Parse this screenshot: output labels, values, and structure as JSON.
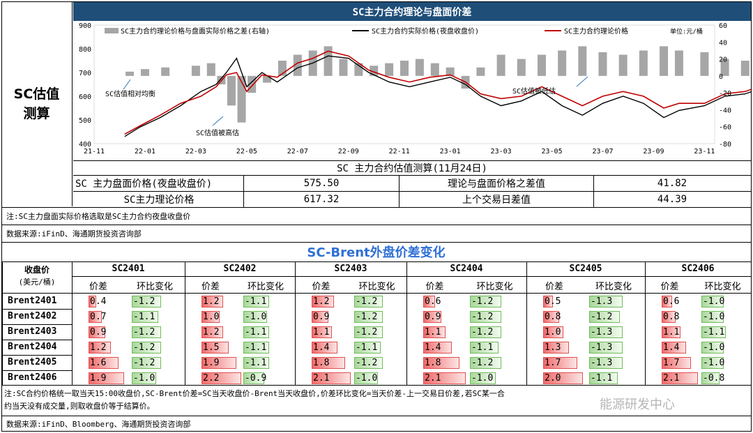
{
  "sidebar": {
    "line1": "SC估值",
    "line2": "测算"
  },
  "top": {
    "title": "SC主力合约理论与盘面价差",
    "legend": {
      "spread": "SC主力合约理论价格与盘面实际价格之差(右轴)",
      "actual": "SC主力合约实际价格(夜盘收盘价)",
      "theory": "SC主力合约理论价格",
      "unit": "单位:元/桶"
    },
    "annotations": {
      "fair": "SC估值相对均衡",
      "over": "SC估值被高估",
      "under": "SC估值被低估"
    },
    "left_ticks": [
      "900",
      "800",
      "700",
      "600",
      "500",
      "400"
    ],
    "right_ticks": [
      "60",
      "40",
      "20",
      "0",
      "-20",
      "-40",
      "-60",
      "-80"
    ],
    "x_ticks": [
      "21-11",
      "22-01",
      "22-03",
      "22-05",
      "22-07",
      "22-09",
      "22-11",
      "23-01",
      "23-03",
      "23-05",
      "23-07",
      "23-09",
      "23-11"
    ]
  },
  "chart_data": {
    "type": "line",
    "title": "SC主力合约理论与盘面价差",
    "x": [
      "21-11",
      "22-01",
      "22-03",
      "22-05",
      "22-07",
      "22-09",
      "22-11",
      "23-01",
      "23-03",
      "23-05",
      "23-07",
      "23-09",
      "23-11"
    ],
    "ylim_left": [
      400,
      900
    ],
    "ylim_right": [
      -80,
      60
    ],
    "series": [
      {
        "name": "SC主力合约实际价格(夜盘收盘价)",
        "axis": "left",
        "color": "#000000",
        "points": [
          [
            0.6,
            430
          ],
          [
            0.9,
            470
          ],
          [
            1.3,
            510
          ],
          [
            1.7,
            560
          ],
          [
            2.1,
            620
          ],
          [
            2.4,
            650
          ],
          [
            2.6,
            700
          ],
          [
            2.8,
            760
          ],
          [
            3.0,
            640
          ],
          [
            3.3,
            700
          ],
          [
            3.6,
            660
          ],
          [
            4.0,
            720
          ],
          [
            4.3,
            740
          ],
          [
            4.6,
            770
          ],
          [
            5.0,
            760
          ],
          [
            5.4,
            700
          ],
          [
            5.8,
            660
          ],
          [
            6.2,
            640
          ],
          [
            6.6,
            660
          ],
          [
            7.0,
            680
          ],
          [
            7.3,
            650
          ],
          [
            7.6,
            600
          ],
          [
            8.0,
            560
          ],
          [
            8.4,
            580
          ],
          [
            8.8,
            620
          ],
          [
            9.2,
            560
          ],
          [
            9.6,
            520
          ],
          [
            10.0,
            570
          ],
          [
            10.4,
            600
          ],
          [
            10.8,
            570
          ],
          [
            11.2,
            510
          ],
          [
            11.5,
            540
          ],
          [
            12.0,
            560
          ],
          [
            12.4,
            600
          ],
          [
            12.8,
            610
          ],
          [
            13.2,
            640
          ],
          [
            13.6,
            660
          ],
          [
            14.0,
            680
          ],
          [
            14.4,
            700
          ],
          [
            14.7,
            720
          ],
          [
            15.0,
            690
          ],
          [
            15.3,
            670
          ],
          [
            15.6,
            650
          ],
          [
            15.9,
            600
          ],
          [
            16.1,
            580
          ]
        ]
      },
      {
        "name": "SC主力合约理论价格",
        "axis": "left",
        "color": "#c00000",
        "points": [
          [
            0.6,
            440
          ],
          [
            0.9,
            475
          ],
          [
            1.3,
            520
          ],
          [
            1.7,
            570
          ],
          [
            2.1,
            600
          ],
          [
            2.4,
            640
          ],
          [
            2.6,
            690
          ],
          [
            2.8,
            700
          ],
          [
            3.0,
            620
          ],
          [
            3.3,
            690
          ],
          [
            3.6,
            680
          ],
          [
            4.0,
            740
          ],
          [
            4.3,
            760
          ],
          [
            4.6,
            790
          ],
          [
            5.0,
            770
          ],
          [
            5.4,
            710
          ],
          [
            5.8,
            680
          ],
          [
            6.2,
            660
          ],
          [
            6.6,
            680
          ],
          [
            7.0,
            690
          ],
          [
            7.3,
            660
          ],
          [
            7.6,
            610
          ],
          [
            8.0,
            590
          ],
          [
            8.4,
            600
          ],
          [
            8.8,
            640
          ],
          [
            9.2,
            600
          ],
          [
            9.6,
            560
          ],
          [
            10.0,
            600
          ],
          [
            10.4,
            620
          ],
          [
            10.8,
            600
          ],
          [
            11.2,
            550
          ],
          [
            11.5,
            570
          ],
          [
            12.0,
            570
          ],
          [
            12.4,
            610
          ],
          [
            12.8,
            620
          ],
          [
            13.2,
            650
          ],
          [
            13.6,
            670
          ],
          [
            14.0,
            690
          ],
          [
            14.4,
            700
          ],
          [
            14.7,
            710
          ],
          [
            15.0,
            700
          ],
          [
            15.3,
            690
          ],
          [
            15.6,
            680
          ],
          [
            15.9,
            640
          ],
          [
            16.1,
            620
          ]
        ]
      },
      {
        "name": "SC主力合约理论价格与盘面实际价格之差(右轴)",
        "axis": "right",
        "color": "#a6a6a6",
        "type": "bar",
        "points": [
          [
            0.7,
            5
          ],
          [
            1.0,
            8
          ],
          [
            1.4,
            10
          ],
          [
            2.0,
            12
          ],
          [
            2.3,
            15
          ],
          [
            2.5,
            -10
          ],
          [
            2.7,
            -35
          ],
          [
            2.9,
            -55
          ],
          [
            3.1,
            -20
          ],
          [
            3.4,
            -8
          ],
          [
            3.7,
            18
          ],
          [
            4.0,
            25
          ],
          [
            4.3,
            30
          ],
          [
            4.6,
            35
          ],
          [
            4.9,
            20
          ],
          [
            5.2,
            15
          ],
          [
            5.5,
            12
          ],
          [
            5.8,
            15
          ],
          [
            6.1,
            18
          ],
          [
            6.4,
            20
          ],
          [
            6.7,
            15
          ],
          [
            7.0,
            10
          ],
          [
            7.3,
            -15
          ],
          [
            7.6,
            10
          ],
          [
            8.0,
            25
          ],
          [
            8.4,
            20
          ],
          [
            8.8,
            25
          ],
          [
            9.2,
            30
          ],
          [
            9.6,
            35
          ],
          [
            10.0,
            28
          ],
          [
            10.4,
            25
          ],
          [
            10.8,
            30
          ],
          [
            11.2,
            35
          ],
          [
            11.5,
            30
          ],
          [
            12.0,
            28
          ],
          [
            12.4,
            20
          ],
          [
            12.8,
            18
          ],
          [
            13.2,
            12
          ],
          [
            13.6,
            10
          ],
          [
            14.0,
            15
          ],
          [
            14.4,
            20
          ],
          [
            14.7,
            -20
          ],
          [
            15.0,
            10
          ],
          [
            15.3,
            20
          ],
          [
            15.6,
            30
          ],
          [
            15.9,
            40
          ],
          [
            16.1,
            42
          ]
        ]
      }
    ]
  },
  "valuation": {
    "header": "SC 主力合约估值测算(11月24日)",
    "r1_label": "SC 主力盘面价格(夜盘收盘价)",
    "r1_value": "575.50",
    "r1_label2": "理论与盘面价格之差值",
    "r1_value2": "41.82",
    "r2_label": "SC主力理论价格",
    "r2_value": "617.32",
    "r2_label2": "上个交易日差值",
    "r2_value2": "44.39"
  },
  "note1": "注:SC主力盘面实际价格选取是SC主力合约夜盘收盘价",
  "source1": "数据来源:iFinD、海通期货投资咨询部",
  "section2_title": "SC-Brent外盘价差变化",
  "table": {
    "corner": "收盘价",
    "corner_unit": "(美元/桶)",
    "sub_a": "价差",
    "sub_b": "环比变化",
    "contracts": [
      "SC2401",
      "SC2402",
      "SC2403",
      "SC2404",
      "SC2405",
      "SC2406"
    ],
    "rows": [
      {
        "name": "Brent2401",
        "vals": [
          [
            "0.4",
            "-1.2"
          ],
          [
            "1.2",
            "-1.1"
          ],
          [
            "1.2",
            "-1.2"
          ],
          [
            "0.6",
            "-1.2"
          ],
          [
            "0.5",
            "-1.3"
          ],
          [
            "0.6",
            "-1.0"
          ]
        ]
      },
      {
        "name": "Brent2402",
        "vals": [
          [
            "0.7",
            "-1.1"
          ],
          [
            "1.0",
            "-1.0"
          ],
          [
            "0.9",
            "-1.2"
          ],
          [
            "0.9",
            "-1.2"
          ],
          [
            "0.8",
            "-1.2"
          ],
          [
            "0.8",
            "-1.0"
          ]
        ]
      },
      {
        "name": "Brent2403",
        "vals": [
          [
            "0.9",
            "-1.2"
          ],
          [
            "1.2",
            "-1.1"
          ],
          [
            "1.1",
            "-1.2"
          ],
          [
            "1.1",
            "-1.2"
          ],
          [
            "1.0",
            "-1.3"
          ],
          [
            "1.1",
            "-1.1"
          ]
        ]
      },
      {
        "name": "Brent2404",
        "vals": [
          [
            "1.2",
            "-1.2"
          ],
          [
            "1.5",
            "-1.1"
          ],
          [
            "1.4",
            "-1.1"
          ],
          [
            "1.4",
            "-1.1"
          ],
          [
            "1.3",
            "-1.3"
          ],
          [
            "1.4",
            "-1.0"
          ]
        ]
      },
      {
        "name": "Brent2405",
        "vals": [
          [
            "1.6",
            "-1.2"
          ],
          [
            "1.9",
            "-1.1"
          ],
          [
            "1.8",
            "-1.2"
          ],
          [
            "1.8",
            "-1.2"
          ],
          [
            "1.7",
            "-1.3"
          ],
          [
            "1.7",
            "-1.0"
          ]
        ]
      },
      {
        "name": "Brent2406",
        "vals": [
          [
            "1.9",
            "-1.0"
          ],
          [
            "2.2",
            "-0.9"
          ],
          [
            "2.1",
            "-1.0"
          ],
          [
            "2.1",
            "-1.0"
          ],
          [
            "2.0",
            "-1.1"
          ],
          [
            "2.1",
            "-0.8"
          ]
        ]
      }
    ]
  },
  "note2_line1": "注:SC合约价格统一取当天15:00收盘价,SC-Brent价差=SC当天收盘价-Brent当天收盘价,价差环比变化=当天价差-上一交易日价差,若SC某一合",
  "note2_line2": "约当天没有成交量,则取收盘价等于结算价。",
  "watermark": "能源研发中心",
  "source2": "数据来源:iFinD、Bloomberg、海通期货投资咨询部"
}
